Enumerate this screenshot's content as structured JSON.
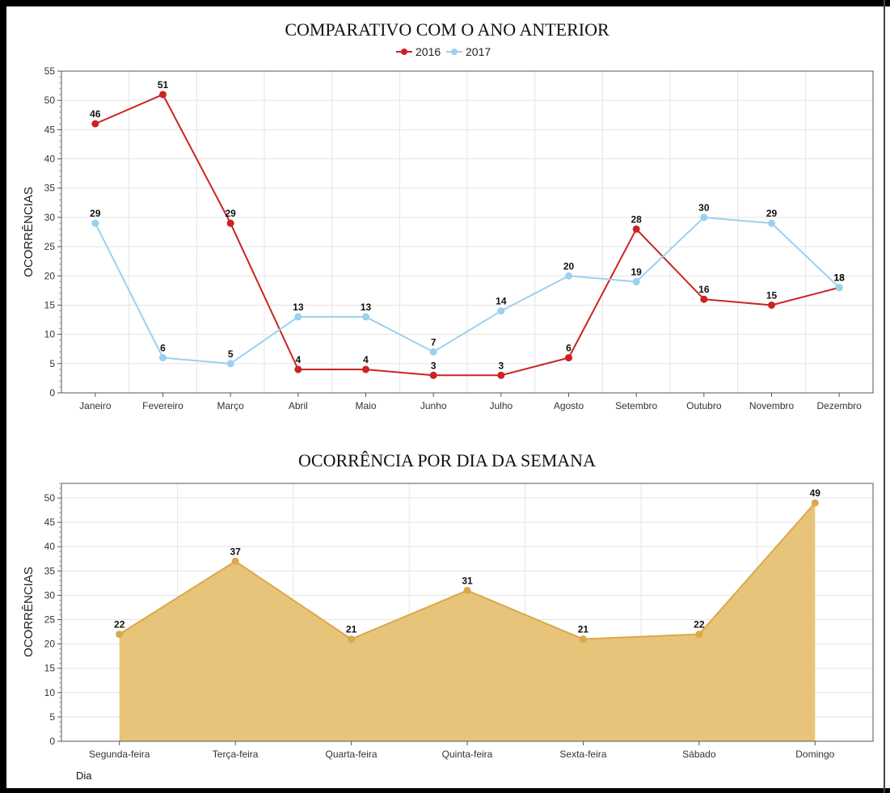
{
  "colors": {
    "series_2016": "#cc2222",
    "series_2017": "#9bd1ee",
    "area_fill": "#e8c47a",
    "area_stroke": "#d9a94a",
    "grid": "#e4e4e4",
    "axis": "#555555"
  },
  "chart_data": [
    {
      "type": "line",
      "title": "COMPARATIVO COM O ANO ANTERIOR",
      "xlabel": "",
      "ylabel": "OCORRÊNCIAS",
      "ylim": [
        0,
        55
      ],
      "yticks": [
        0,
        5,
        10,
        15,
        20,
        25,
        30,
        35,
        40,
        45,
        50,
        55
      ],
      "grid": true,
      "legend_position": "top-center",
      "categories": [
        "Janeiro",
        "Fevereiro",
        "Março",
        "Abril",
        "Maio",
        "Junho",
        "Julho",
        "Agosto",
        "Setembro",
        "Outubro",
        "Novembro",
        "Dezembro"
      ],
      "series": [
        {
          "name": "2016",
          "values": [
            46,
            51,
            29,
            4,
            4,
            3,
            3,
            6,
            28,
            16,
            15,
            18
          ]
        },
        {
          "name": "2017",
          "values": [
            29,
            6,
            5,
            13,
            13,
            7,
            14,
            20,
            19,
            30,
            29,
            18
          ]
        }
      ]
    },
    {
      "type": "area",
      "title": "OCORRÊNCIA POR DIA DA SEMANA",
      "xlabel": "Dia",
      "ylabel": "OCORRÊNCIAS",
      "ylim": [
        0,
        53
      ],
      "yticks": [
        0,
        5,
        10,
        15,
        20,
        25,
        30,
        35,
        40,
        45,
        50
      ],
      "grid": true,
      "categories": [
        "Segunda-feira",
        "Terça-feira",
        "Quarta-feira",
        "Quinta-feira",
        "Sexta-feira",
        "Sábado",
        "Domingo"
      ],
      "series": [
        {
          "values": [
            22,
            37,
            21,
            31,
            21,
            22,
            49
          ]
        }
      ]
    }
  ]
}
